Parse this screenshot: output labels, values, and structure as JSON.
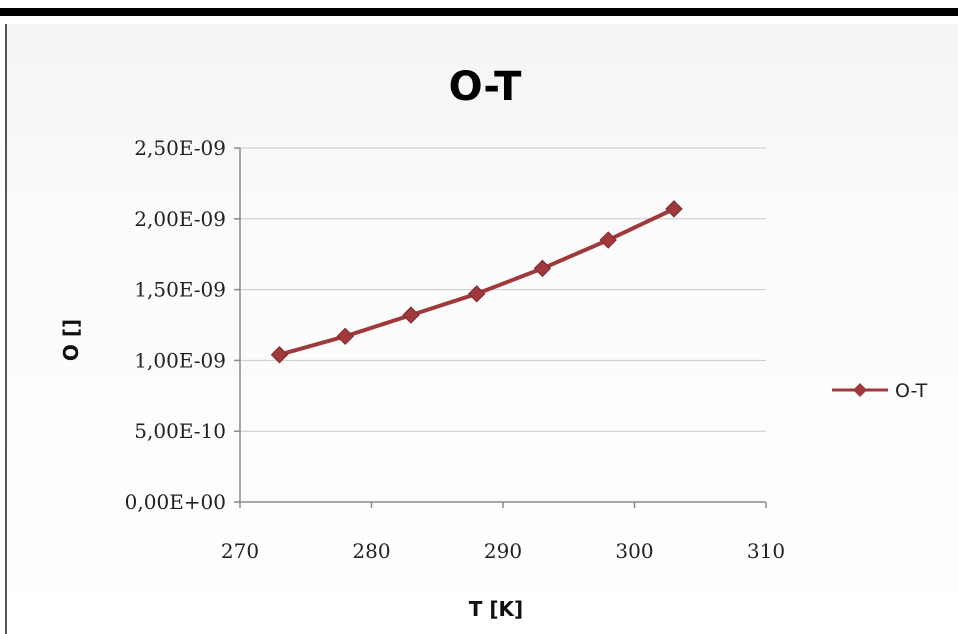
{
  "chart_data": {
    "type": "line",
    "title": "O-T",
    "xlabel": "T [K]",
    "ylabel": "O []",
    "xlim": [
      270,
      310
    ],
    "ylim": [
      0,
      2.5e-09
    ],
    "x_ticks": [
      "270",
      "280",
      "290",
      "300",
      "310"
    ],
    "y_ticks": [
      "0,00E+00",
      "5,00E-10",
      "1,00E-09",
      "1,50E-09",
      "2,00E-09",
      "2,50E-09"
    ],
    "grid": "horizontal",
    "legend_position": "right",
    "series": [
      {
        "name": "O-T",
        "color": "#a0393b",
        "marker": "diamond",
        "x": [
          273,
          278,
          283,
          288,
          293,
          298,
          303
        ],
        "y": [
          1.04e-09,
          1.17e-09,
          1.32e-09,
          1.47e-09,
          1.65e-09,
          1.85e-09,
          2.07e-09
        ]
      }
    ]
  }
}
